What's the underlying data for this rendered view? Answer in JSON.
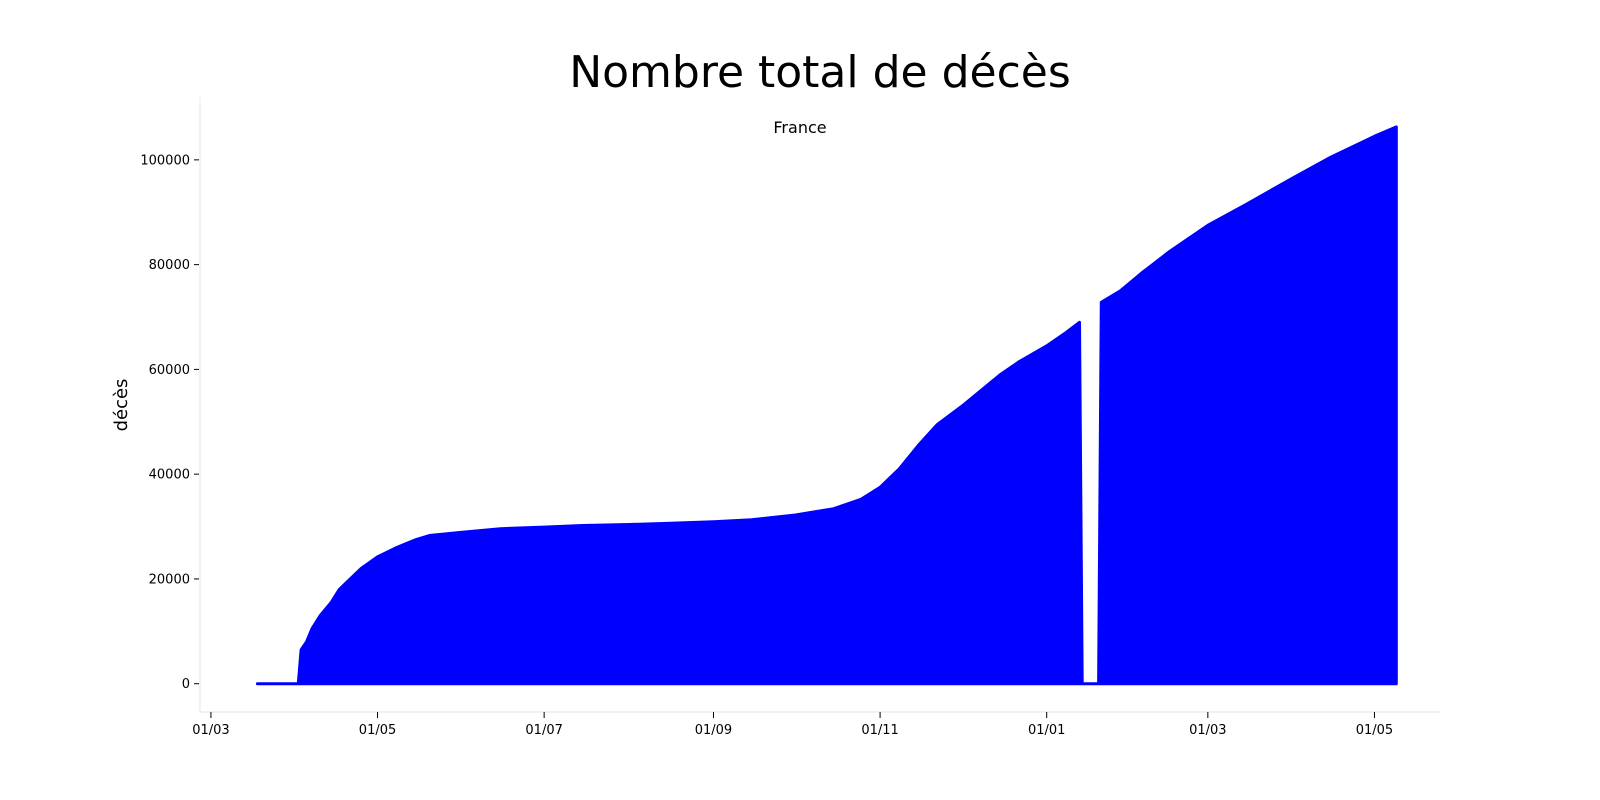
{
  "chart_data": {
    "type": "area",
    "title": "Nombre total de décès",
    "subtitle": "France",
    "xlabel": "",
    "ylabel": "décès",
    "x_ticks": [
      "01/03",
      "01/05",
      "01/07",
      "01/09",
      "01/11",
      "01/01",
      "01/03",
      "01/05"
    ],
    "x_tick_dates": [
      "2020-03-01",
      "2020-05-01",
      "2020-07-01",
      "2020-09-01",
      "2020-11-01",
      "2021-01-01",
      "2021-03-01",
      "2021-05-01"
    ],
    "y_ticks": [
      0,
      20000,
      40000,
      60000,
      80000,
      100000
    ],
    "xlim": [
      "2020-02-26",
      "2021-05-25"
    ],
    "ylim": [
      -5400,
      112000
    ],
    "grid": false,
    "legend": "none",
    "series": [
      {
        "color": "#0000ff",
        "points": [
          [
            "2020-03-18",
            0
          ],
          [
            "2020-04-02",
            0
          ],
          [
            "2020-04-03",
            6500
          ],
          [
            "2020-04-05",
            8000
          ],
          [
            "2020-04-07",
            10500
          ],
          [
            "2020-04-10",
            13000
          ],
          [
            "2020-04-14",
            15500
          ],
          [
            "2020-04-17",
            18000
          ],
          [
            "2020-04-21",
            20000
          ],
          [
            "2020-04-25",
            22000
          ],
          [
            "2020-05-01",
            24200
          ],
          [
            "2020-05-08",
            26000
          ],
          [
            "2020-05-15",
            27500
          ],
          [
            "2020-05-20",
            28300
          ],
          [
            "2020-06-01",
            28900
          ],
          [
            "2020-06-15",
            29600
          ],
          [
            "2020-07-01",
            29900
          ],
          [
            "2020-07-15",
            30200
          ],
          [
            "2020-08-01",
            30400
          ],
          [
            "2020-08-15",
            30600
          ],
          [
            "2020-09-01",
            30900
          ],
          [
            "2020-09-15",
            31300
          ],
          [
            "2020-10-01",
            32200
          ],
          [
            "2020-10-15",
            33400
          ],
          [
            "2020-10-25",
            35200
          ],
          [
            "2020-11-01",
            37500
          ],
          [
            "2020-11-08",
            41000
          ],
          [
            "2020-11-15",
            45500
          ],
          [
            "2020-11-22",
            49500
          ],
          [
            "2020-12-01",
            53000
          ],
          [
            "2020-12-08",
            56000
          ],
          [
            "2020-12-15",
            59000
          ],
          [
            "2020-12-22",
            61500
          ],
          [
            "2021-01-01",
            64500
          ],
          [
            "2021-01-08",
            67000
          ],
          [
            "2021-01-13",
            69000
          ],
          [
            "2021-01-14",
            0
          ],
          [
            "2021-01-20",
            0
          ],
          [
            "2021-01-21",
            72800
          ],
          [
            "2021-01-28",
            75000
          ],
          [
            "2021-02-05",
            78500
          ],
          [
            "2021-02-15",
            82500
          ],
          [
            "2021-03-01",
            87500
          ],
          [
            "2021-03-15",
            91500
          ],
          [
            "2021-04-01",
            96500
          ],
          [
            "2021-04-15",
            100500
          ],
          [
            "2021-05-01",
            104500
          ],
          [
            "2021-05-09",
            106300
          ]
        ]
      }
    ]
  }
}
